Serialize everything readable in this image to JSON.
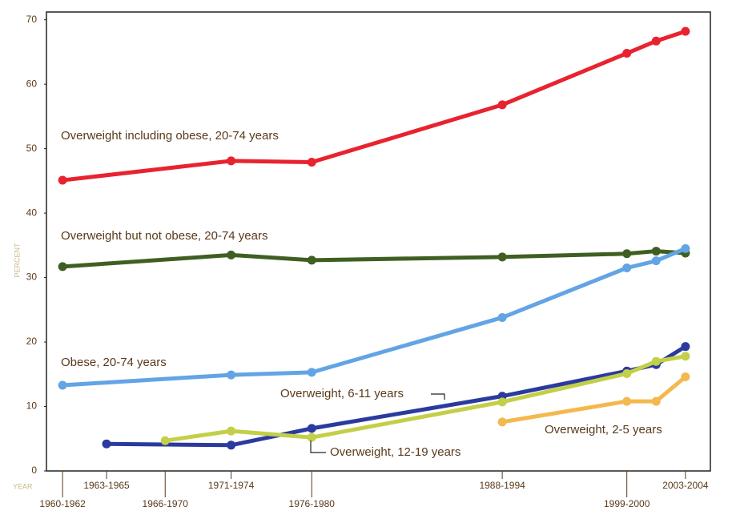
{
  "chart_data": {
    "type": "line",
    "y_label": "PERCENT",
    "x_label": "YEAR",
    "xlim": [
      1959.9,
      2005.2
    ],
    "ylim": [
      0,
      71.2
    ],
    "xticks": [
      {
        "value": 1961,
        "label": "1960-1962"
      },
      {
        "value": 1964,
        "label": "1963-1965"
      },
      {
        "value": 1968,
        "label": "1966-1970"
      },
      {
        "value": 1972.5,
        "label": "1971-1974"
      },
      {
        "value": 1978,
        "label": "1976-1980"
      },
      {
        "value": 1991,
        "label": "1988-1994"
      },
      {
        "value": 1999.5,
        "label": "1999-2000"
      },
      {
        "value": 2003.5,
        "label": "2003-2004"
      }
    ],
    "yticks": [
      0,
      10,
      20,
      30,
      40,
      50,
      60,
      70
    ],
    "series": [
      {
        "name": "Overweight including obese, 20-74 years",
        "color": "#e8232f",
        "x": [
          1961,
          1972.5,
          1978,
          1991,
          1999.5,
          2001.5,
          2003.5
        ],
        "values": [
          45.1,
          48.1,
          47.9,
          56.8,
          64.8,
          66.7,
          68.2
        ]
      },
      {
        "name": "Overweight but not obese, 20-74 years",
        "color": "#3f5f22",
        "x": [
          1961,
          1972.5,
          1978,
          1991,
          1999.5,
          2001.5,
          2003.5
        ],
        "values": [
          31.7,
          33.5,
          32.7,
          33.2,
          33.7,
          34.1,
          33.8
        ]
      },
      {
        "name": "Obese, 20-74 years",
        "color": "#62a4e4",
        "x": [
          1961,
          1972.5,
          1978,
          1991,
          1999.5,
          2001.5,
          2003.5
        ],
        "values": [
          13.3,
          14.9,
          15.3,
          23.8,
          31.5,
          32.6,
          34.5
        ]
      },
      {
        "name": "Overweight, 6-11 years",
        "color": "#2b3a9f",
        "x": [
          1964,
          1972.5,
          1978,
          1991,
          1999.5,
          2001.5,
          2003.5
        ],
        "values": [
          4.2,
          4.0,
          6.6,
          11.6,
          15.5,
          16.5,
          19.3
        ]
      },
      {
        "name": "Overweight, 12-19 years",
        "color": "#c3cf48",
        "x": [
          1968,
          1972.5,
          1978,
          1991,
          1999.5,
          2001.5,
          2003.5
        ],
        "values": [
          4.7,
          6.2,
          5.2,
          10.7,
          15.1,
          17.0,
          17.8
        ]
      },
      {
        "name": "Overweight, 2-5 years",
        "color": "#f3b94e",
        "x": [
          1991,
          1999.5,
          2001.5,
          2003.5
        ],
        "values": [
          7.6,
          10.8,
          10.8,
          14.6
        ]
      }
    ]
  }
}
